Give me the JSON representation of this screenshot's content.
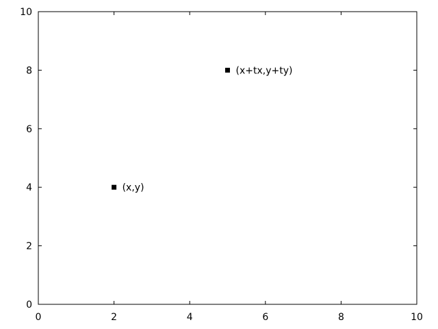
{
  "chart_data": {
    "type": "scatter",
    "title": "",
    "xlabel": "",
    "ylabel": "",
    "xlim": [
      0,
      10
    ],
    "ylim": [
      0,
      10
    ],
    "xticks": [
      0,
      2,
      4,
      6,
      8,
      10
    ],
    "yticks": [
      0,
      2,
      4,
      6,
      8,
      10
    ],
    "grid": false,
    "marker": "square",
    "marker_color": "#000000",
    "points": [
      {
        "x": 2,
        "y": 4,
        "label": "(x,y)"
      },
      {
        "x": 5,
        "y": 8,
        "label": "(x+tx,y+ty)"
      }
    ]
  }
}
